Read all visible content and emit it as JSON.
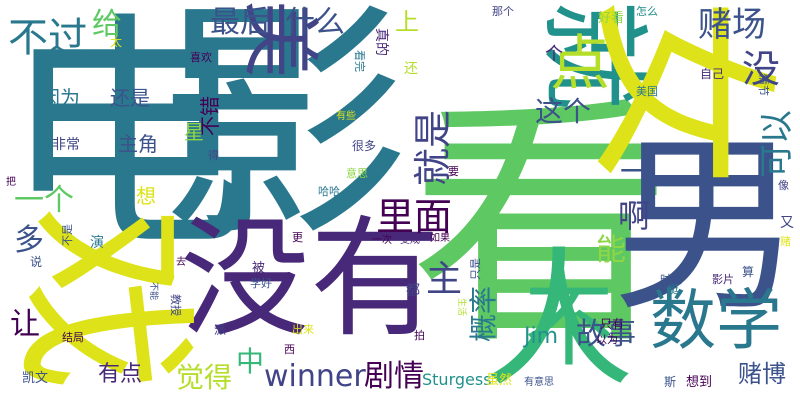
{
  "palette": {
    "yellow": "#dde318",
    "yellow_green": "#b5de2b",
    "light_green": "#8ed645",
    "green": "#5ec962",
    "teal_green": "#35b779",
    "teal": "#21918c",
    "blue_teal": "#2a788e",
    "blue": "#3b528b",
    "indigo": "#414487",
    "dark_purple": "#440154",
    "purple": "#482878"
  },
  "words": [
    {
      "id": "dian",
      "text": "电"
    },
    {
      "id": "ying",
      "text": "影"
    },
    {
      "id": "kan",
      "text": "看"
    },
    {
      "id": "nan",
      "text": "男"
    },
    {
      "id": "jiu",
      "text": "就"
    },
    {
      "id": "nv",
      "text": "女"
    },
    {
      "id": "mei_big",
      "text": "美"
    },
    {
      "id": "meiyou",
      "text": "没有"
    },
    {
      "id": "xi",
      "text": "戏"
    },
    {
      "id": "ren",
      "text": "人"
    },
    {
      "id": "bu_big",
      "text": "不"
    },
    {
      "id": "shuxue",
      "text": "数学"
    },
    {
      "id": "dian_small",
      "text": "点"
    },
    {
      "id": "buguo",
      "text": "不过"
    },
    {
      "id": "gei",
      "text": "给"
    },
    {
      "id": "zuihou",
      "text": "最后"
    },
    {
      "id": "shenme",
      "text": "什么"
    },
    {
      "id": "duchang",
      "text": "赌场"
    },
    {
      "id": "mei_side",
      "text": "没"
    },
    {
      "id": "shang",
      "text": "上"
    },
    {
      "id": "ge",
      "text": "个"
    },
    {
      "id": "zhege",
      "text": "这个"
    },
    {
      "id": "keyi",
      "text": "可以"
    },
    {
      "id": "jiushi",
      "text": "就是"
    },
    {
      "id": "limian",
      "text": "里面"
    },
    {
      "id": "yige",
      "text": "一个"
    },
    {
      "id": "a",
      "text": "啊"
    },
    {
      "id": "yi",
      "text": "一"
    },
    {
      "id": "duo",
      "text": "多"
    },
    {
      "id": "neng",
      "text": "能"
    },
    {
      "id": "zhu",
      "text": "主"
    },
    {
      "id": "gailv",
      "text": "概率"
    },
    {
      "id": "rang",
      "text": "让"
    },
    {
      "id": "zhong",
      "text": "中"
    },
    {
      "id": "winner",
      "text": "winner"
    },
    {
      "id": "juqing",
      "text": "剧情"
    },
    {
      "id": "jim",
      "text": "Jim"
    },
    {
      "id": "gushi",
      "text": "故事"
    },
    {
      "id": "youdian",
      "text": "有点"
    },
    {
      "id": "juede",
      "text": "觉得"
    },
    {
      "id": "dubo",
      "text": "赌博"
    },
    {
      "id": "sturgess",
      "text": "Sturgess"
    },
    {
      "id": "yinwei",
      "text": "因为"
    },
    {
      "id": "haishi",
      "text": "还是"
    },
    {
      "id": "zhujue",
      "text": "主角"
    },
    {
      "id": "feichang",
      "text": "非常"
    },
    {
      "id": "bucuo",
      "text": "不错"
    },
    {
      "id": "xing",
      "text": "星"
    },
    {
      "id": "xiang",
      "text": "想"
    },
    {
      "id": "tai",
      "text": "太"
    },
    {
      "id": "xihuan",
      "text": "喜欢"
    },
    {
      "id": "huan",
      "text": "还"
    },
    {
      "id": "kanwan",
      "text": "看完"
    },
    {
      "id": "zhende",
      "text": "真的"
    },
    {
      "id": "nage",
      "text": "那个"
    },
    {
      "id": "haokan",
      "text": "好看"
    },
    {
      "id": "zenme",
      "text": "怎么"
    },
    {
      "id": "ziji",
      "text": "自己"
    },
    {
      "id": "meiguo",
      "text": "美国"
    },
    {
      "id": "qingjie",
      "text": "情节"
    },
    {
      "id": "youxie",
      "text": "有些"
    },
    {
      "id": "henduo",
      "text": "很多"
    },
    {
      "id": "de",
      "text": "得"
    },
    {
      "id": "ba",
      "text": "把"
    },
    {
      "id": "yisi",
      "text": "意思"
    },
    {
      "id": "yao",
      "text": "要"
    },
    {
      "id": "haha",
      "text": "哈哈"
    },
    {
      "id": "bushi",
      "text": "不是"
    },
    {
      "id": "yan",
      "text": "演"
    },
    {
      "id": "geng",
      "text": "更"
    },
    {
      "id": "yici",
      "text": "一次"
    },
    {
      "id": "biancheng",
      "text": "变成"
    },
    {
      "id": "ruguo",
      "text": "如果"
    },
    {
      "id": "zhishi",
      "text": "只是"
    },
    {
      "id": "you",
      "text": "又"
    },
    {
      "id": "du",
      "text": "赌"
    },
    {
      "id": "xiang2",
      "text": "像"
    },
    {
      "id": "shuo",
      "text": "说"
    },
    {
      "id": "qu",
      "text": "去"
    },
    {
      "id": "bei",
      "text": "被"
    },
    {
      "id": "xuehao",
      "text": "学好"
    },
    {
      "id": "shihou",
      "text": "时候"
    },
    {
      "id": "suan",
      "text": "算"
    },
    {
      "id": "yingpian",
      "text": "影片"
    },
    {
      "id": "ting",
      "text": "挺"
    },
    {
      "id": "buneng",
      "text": "不能"
    },
    {
      "id": "jiaoshou",
      "text": "教授"
    },
    {
      "id": "pai",
      "text": "派"
    },
    {
      "id": "zhiyou",
      "text": "只有"
    },
    {
      "id": "yiwei",
      "text": "以为"
    },
    {
      "id": "chulai",
      "text": "出来"
    },
    {
      "id": "shenghuo",
      "text": "生活"
    },
    {
      "id": "pai2",
      "text": "拍"
    },
    {
      "id": "dou",
      "text": "都"
    },
    {
      "id": "jieju",
      "text": "结局"
    },
    {
      "id": "xi2",
      "text": "西"
    },
    {
      "id": "kaiwen",
      "text": "凯文"
    },
    {
      "id": "suiran",
      "text": "虽然"
    },
    {
      "id": "youyisi",
      "text": "有意思"
    },
    {
      "id": "si",
      "text": "斯"
    },
    {
      "id": "xiangdao",
      "text": "想到"
    }
  ]
}
